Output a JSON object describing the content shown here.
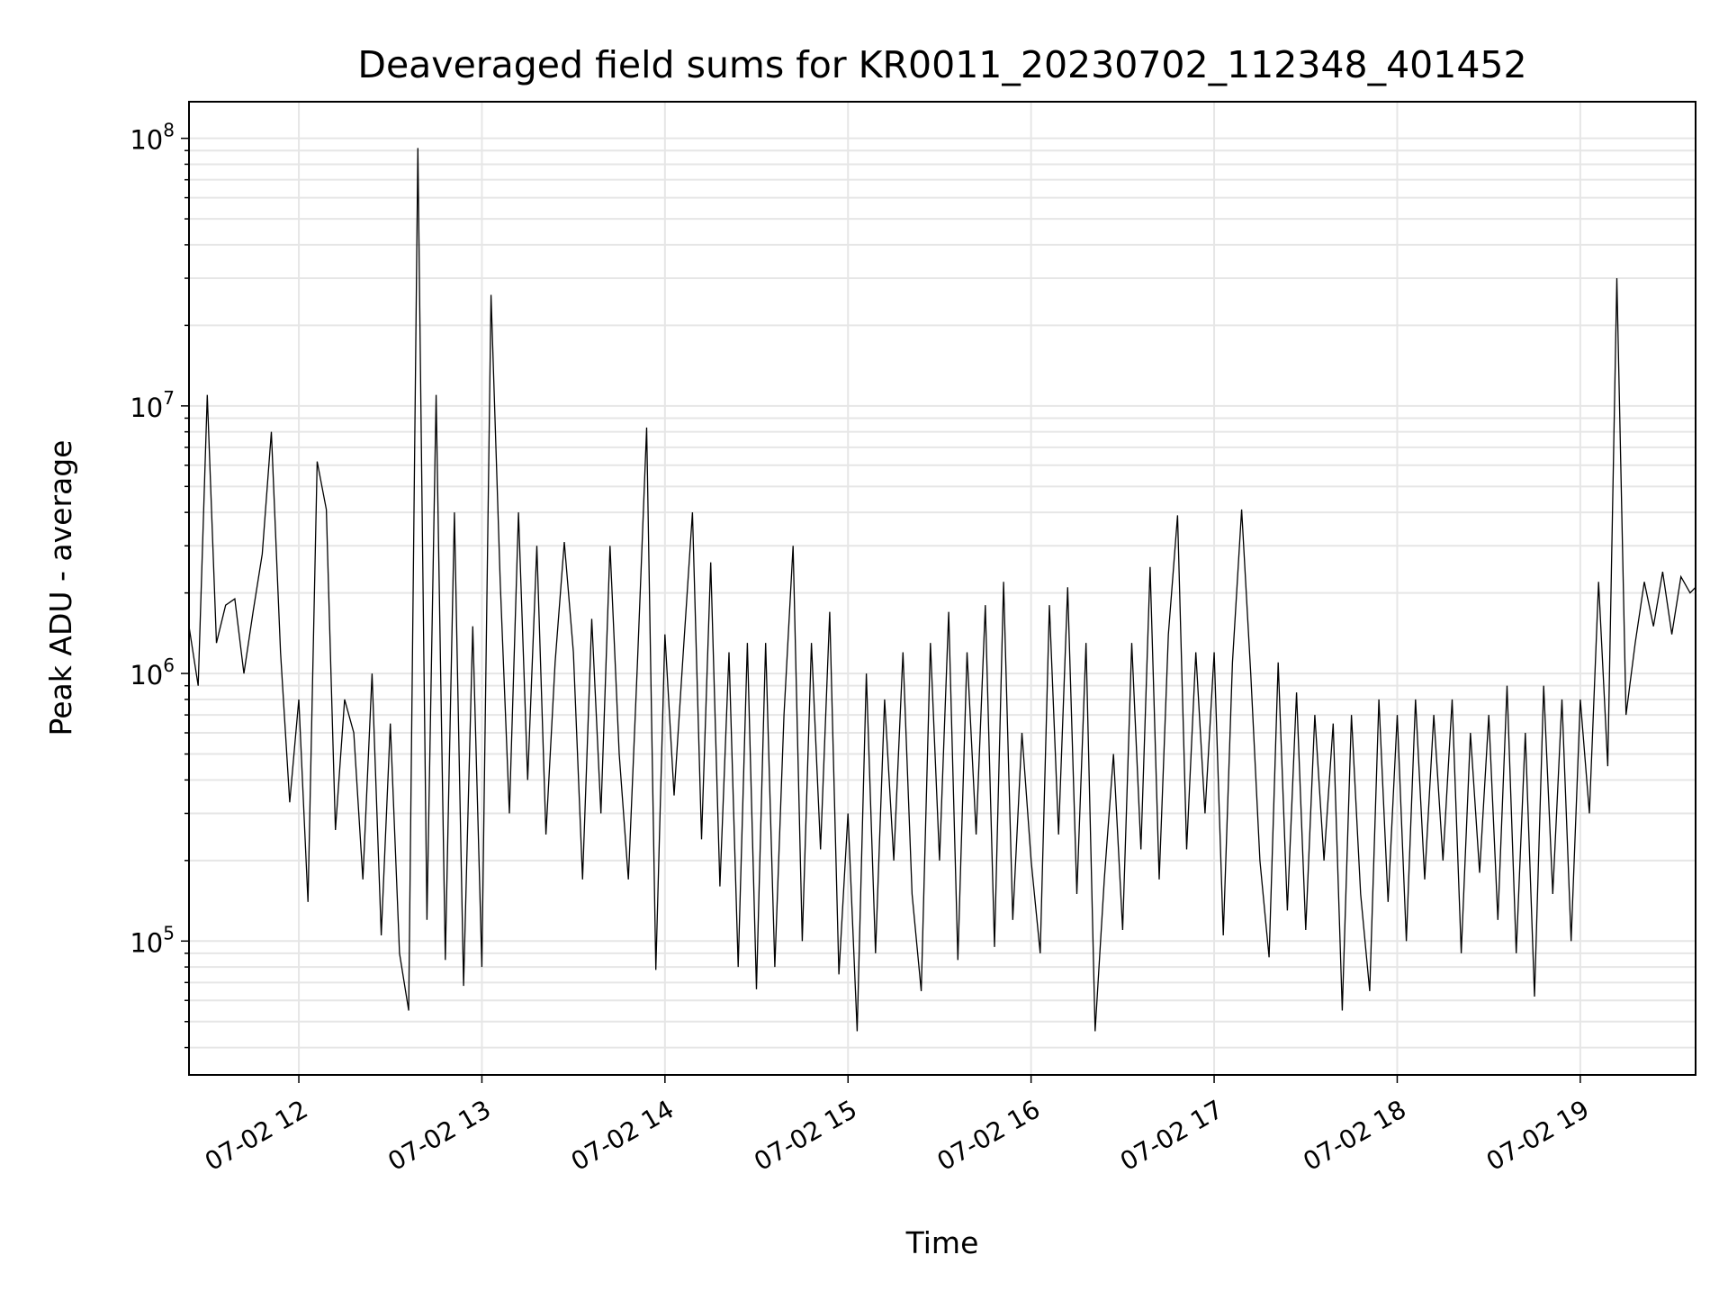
{
  "chart_data": {
    "type": "line",
    "title": "Deaveraged field sums for KR0011_20230702_112348_401452",
    "xlabel": "Time",
    "ylabel": "Peak ADU - average",
    "yscale": "log",
    "xlim_hours": [
      11.4,
      19.63
    ],
    "ylim": [
      31600.0,
      137000000.0
    ],
    "grid": true,
    "x_ticks": [
      {
        "hour": 12,
        "label": "07-02 12"
      },
      {
        "hour": 13,
        "label": "07-02 13"
      },
      {
        "hour": 14,
        "label": "07-02 14"
      },
      {
        "hour": 15,
        "label": "07-02 15"
      },
      {
        "hour": 16,
        "label": "07-02 16"
      },
      {
        "hour": 17,
        "label": "07-02 17"
      },
      {
        "hour": 18,
        "label": "07-02 18"
      },
      {
        "hour": 19,
        "label": "07-02 19"
      }
    ],
    "y_ticks": [
      {
        "value": 100000.0,
        "base": "10",
        "exp": "5"
      },
      {
        "value": 1000000.0,
        "base": "10",
        "exp": "6"
      },
      {
        "value": 10000000.0,
        "base": "10",
        "exp": "7"
      },
      {
        "value": 100000000.0,
        "base": "10",
        "exp": "8"
      }
    ],
    "series": [
      {
        "name": "field sums",
        "color": "#000000",
        "x_start_hour": 11.4,
        "x_step_hours": 0.05,
        "values": [
          1500000.0,
          900000.0,
          11000000.0,
          1300000.0,
          1800000.0,
          1900000.0,
          1000000.0,
          1700000.0,
          2800000.0,
          8000000.0,
          1200000.0,
          330000.0,
          800000.0,
          140000.0,
          6200000.0,
          4100000.0,
          260000.0,
          800000.0,
          600000.0,
          170000.0,
          1000000.0,
          105000.0,
          650000.0,
          90000.0,
          55000.0,
          92000000.0,
          120000.0,
          11000000.0,
          85000.0,
          4000000.0,
          68000.0,
          1500000.0,
          80000.0,
          26000000.0,
          2200000.0,
          300000.0,
          4000000.0,
          400000.0,
          3000000.0,
          250000.0,
          1100000.0,
          3100000.0,
          1200000.0,
          170000.0,
          1600000.0,
          300000.0,
          3000000.0,
          500000.0,
          170000.0,
          1100000.0,
          8300000.0,
          78000.0,
          1400000.0,
          350000.0,
          1200000.0,
          4000000.0,
          240000.0,
          2600000.0,
          160000.0,
          1200000.0,
          80000.0,
          1300000.0,
          66000.0,
          1300000.0,
          80000.0,
          700000.0,
          3000000.0,
          100000.0,
          1300000.0,
          220000.0,
          1700000.0,
          75000.0,
          300000.0,
          46000.0,
          1000000.0,
          90000.0,
          800000.0,
          200000.0,
          1200000.0,
          150000.0,
          65000.0,
          1300000.0,
          200000.0,
          1700000.0,
          85000.0,
          1200000.0,
          250000.0,
          1800000.0,
          95000.0,
          2200000.0,
          120000.0,
          600000.0,
          200000.0,
          90000.0,
          1800000.0,
          250000.0,
          2100000.0,
          150000.0,
          1300000.0,
          46000.0,
          170000.0,
          500000.0,
          110000.0,
          1300000.0,
          220000.0,
          2500000.0,
          170000.0,
          1400000.0,
          3900000.0,
          220000.0,
          1200000.0,
          300000.0,
          1200000.0,
          105000.0,
          1100000.0,
          4100000.0,
          1000000.0,
          200000.0,
          87000.0,
          1100000.0,
          130000.0,
          850000.0,
          110000.0,
          700000.0,
          200000.0,
          650000.0,
          55000.0,
          700000.0,
          150000.0,
          65000.0,
          800000.0,
          140000.0,
          700000.0,
          100000.0,
          800000.0,
          170000.0,
          700000.0,
          200000.0,
          800000.0,
          90000.0,
          600000.0,
          180000.0,
          700000.0,
          120000.0,
          900000.0,
          90000.0,
          600000.0,
          62000.0,
          900000.0,
          150000.0,
          800000.0,
          100000.0,
          800000.0,
          300000.0,
          2200000.0,
          450000.0,
          30000000.0,
          700000.0,
          1300000.0,
          2200000.0,
          1500000.0,
          2400000.0,
          1400000.0,
          2300000.0,
          2000000.0,
          2100000.0
        ]
      }
    ]
  }
}
